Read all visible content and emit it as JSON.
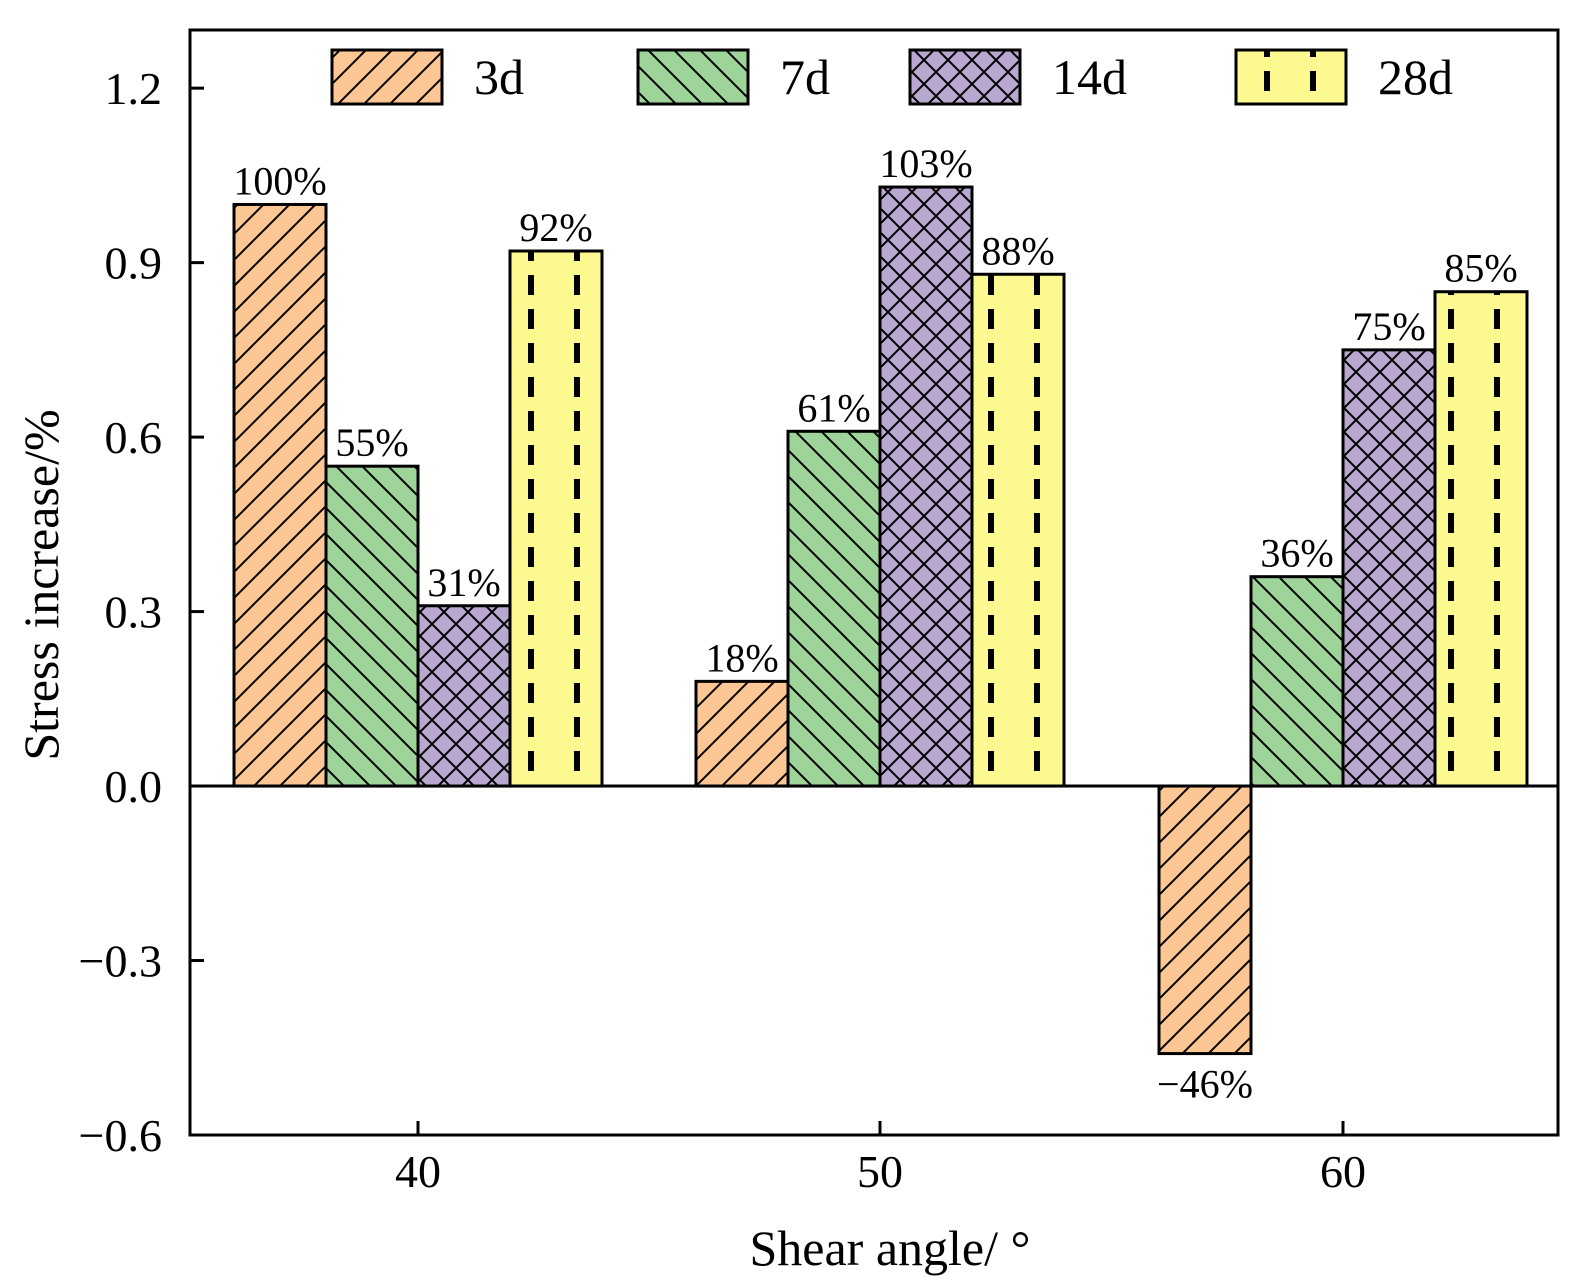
{
  "chart_data": {
    "type": "bar",
    "xlabel": "Shear angle/ °",
    "ylabel": "Stress increase/%",
    "categories": [
      "40",
      "50",
      "60"
    ],
    "ylim": [
      -0.6,
      1.3
    ],
    "yticks": [
      -0.6,
      -0.3,
      0.0,
      0.3,
      0.6,
      0.9,
      1.2
    ],
    "ytick_labels": [
      "−0.6",
      "−0.3",
      "0.0",
      "0.3",
      "0.6",
      "0.9",
      "1.2"
    ],
    "legend_position": "top",
    "grid": false,
    "series": [
      {
        "name": "3d",
        "color": "#fcc795",
        "pattern": "diagonal-right",
        "values": [
          1.0,
          0.18,
          -0.46
        ],
        "labels": [
          "100%",
          "18%",
          "−46%"
        ]
      },
      {
        "name": "7d",
        "color": "#9ed49a",
        "pattern": "diagonal-left",
        "values": [
          0.55,
          0.61,
          0.36
        ],
        "labels": [
          "55%",
          "61%",
          "36%"
        ]
      },
      {
        "name": "14d",
        "color": "#b8a8cf",
        "pattern": "crosshatch",
        "values": [
          0.31,
          1.03,
          0.75
        ],
        "labels": [
          "31%",
          "103%",
          "75%"
        ]
      },
      {
        "name": "28d",
        "color": "#fbf98f",
        "pattern": "dashed-vertical",
        "values": [
          0.92,
          0.88,
          0.85
        ],
        "labels": [
          "92%",
          "88%",
          "85%"
        ]
      }
    ]
  }
}
